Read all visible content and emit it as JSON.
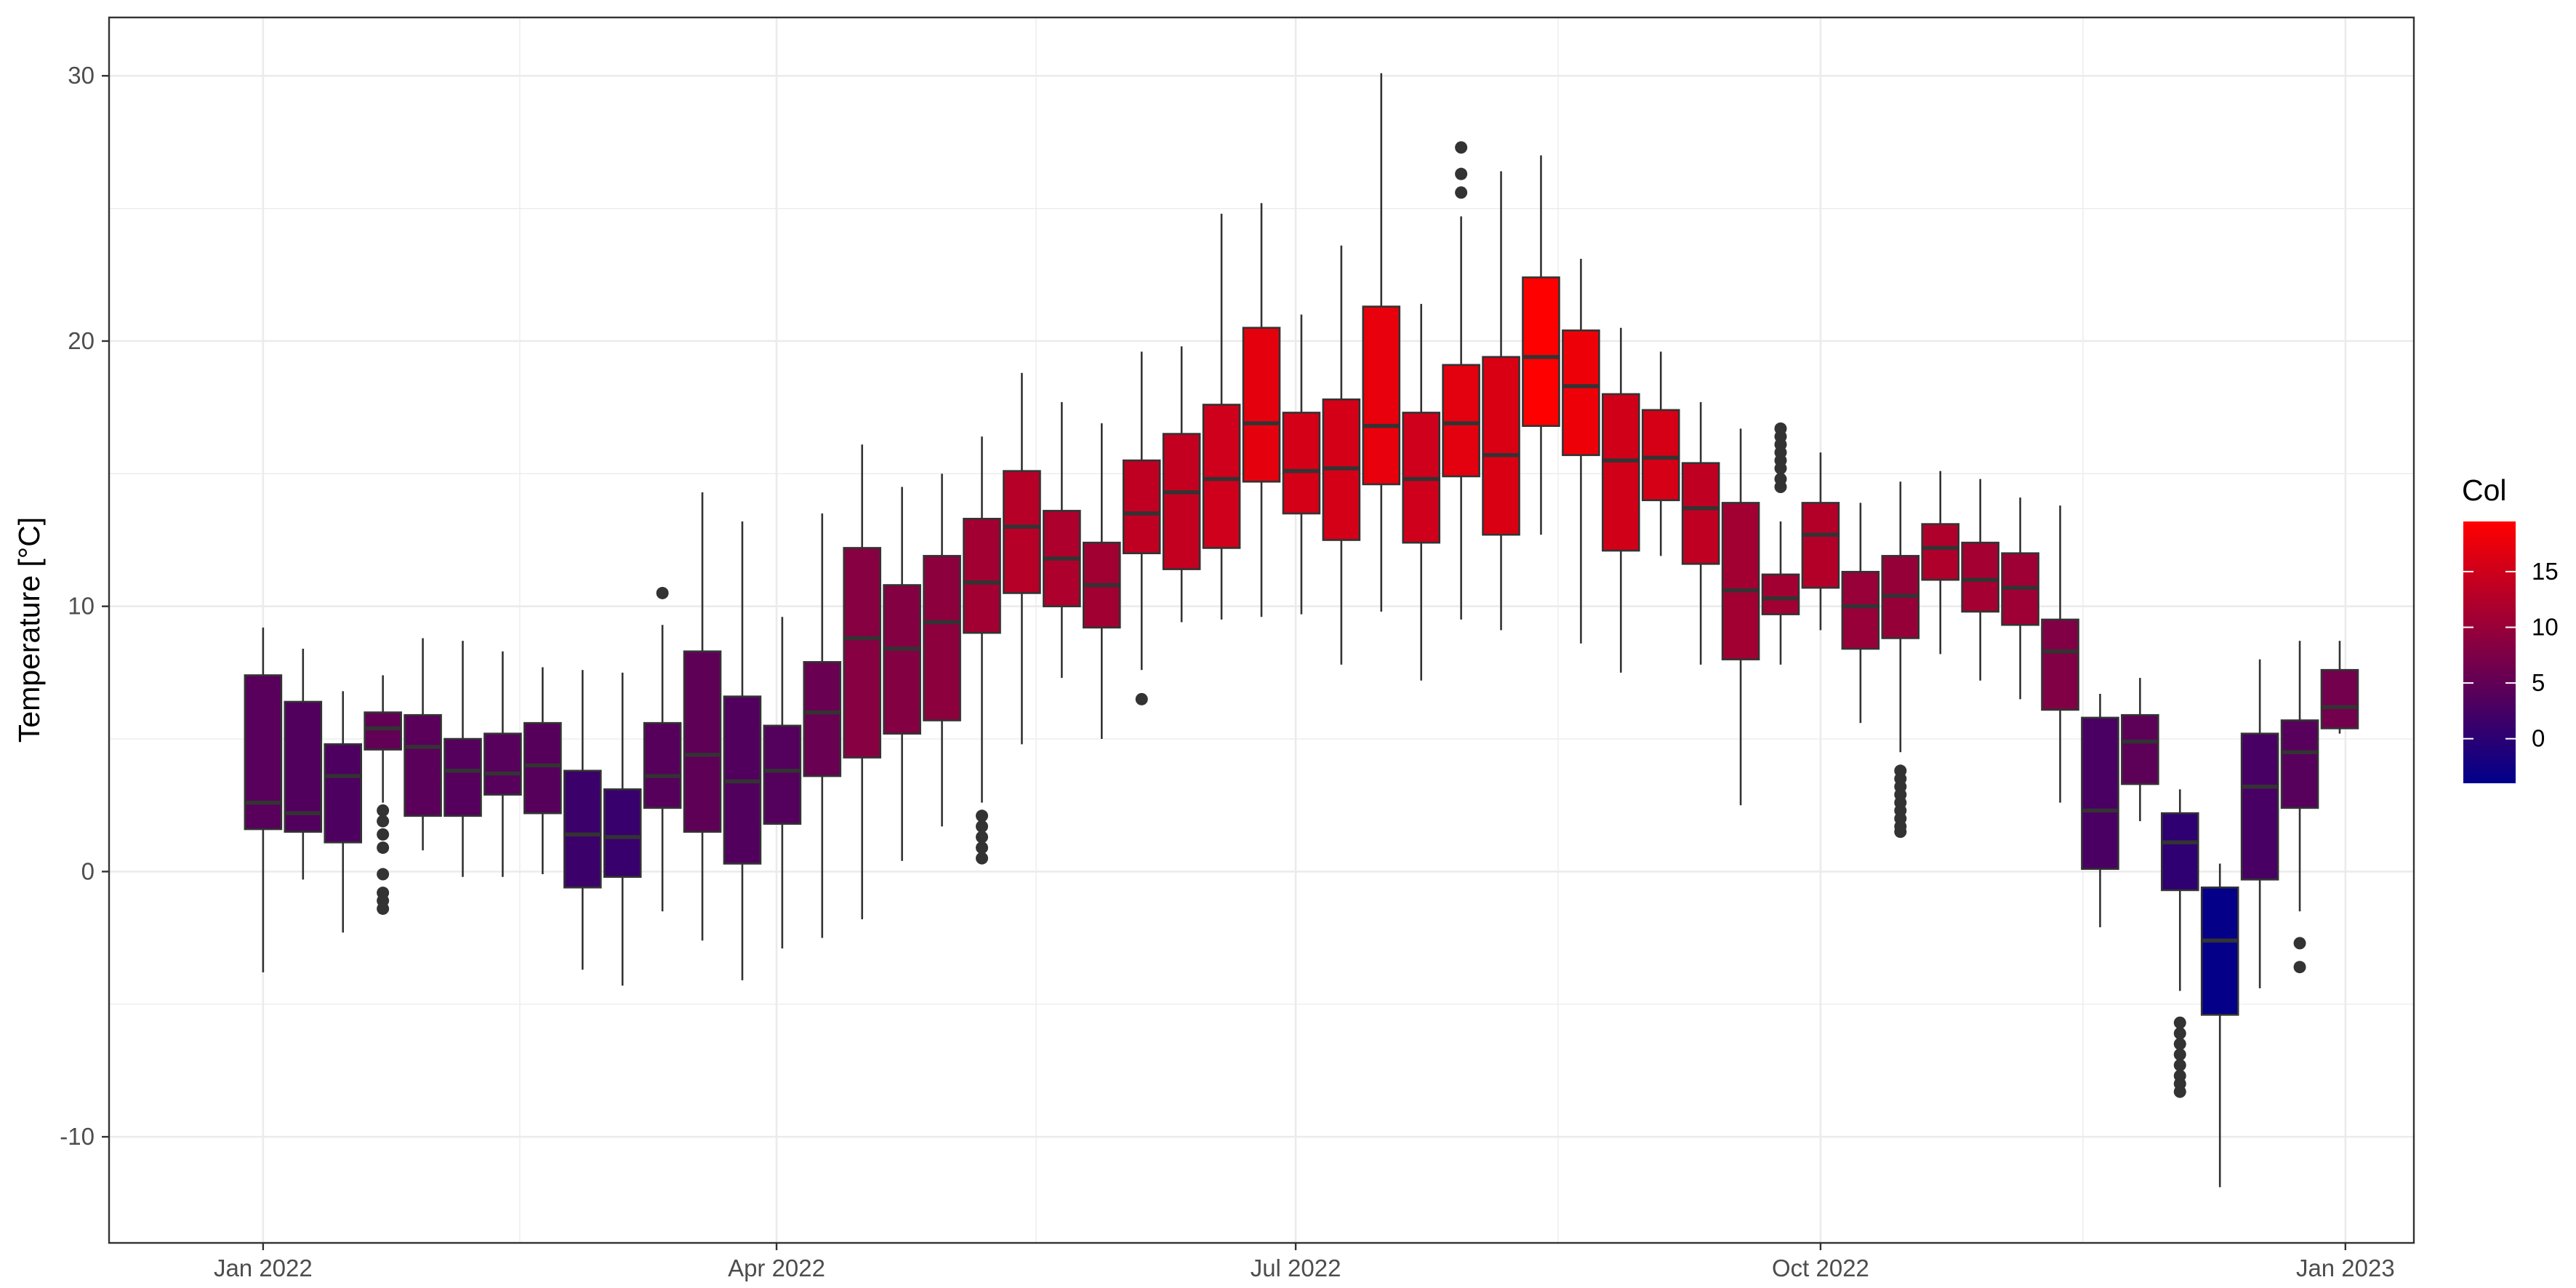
{
  "chart_data": {
    "type": "boxplot",
    "title": "",
    "xlabel": "",
    "ylabel": "Temperature [°C]",
    "xlim": [
      "2021-12-05",
      "2023-01-13"
    ],
    "ylim": [
      -14,
      32.2
    ],
    "x_ticks": [
      {
        "date": "2022-01-01",
        "label": "Jan 2022"
      },
      {
        "date": "2022-04-01",
        "label": "Apr 2022"
      },
      {
        "date": "2022-07-01",
        "label": "Jul 2022"
      },
      {
        "date": "2022-10-01",
        "label": "Oct 2022"
      },
      {
        "date": "2023-01-01",
        "label": "Jan 2023"
      }
    ],
    "y_ticks": [
      -10,
      0,
      10,
      20,
      30
    ],
    "grid": true,
    "legend": {
      "title": "Col",
      "placement": "right",
      "type": "colorbar",
      "range": [
        -4,
        19.5
      ],
      "ticks": [
        0,
        5,
        10,
        15
      ],
      "low_color": "#00008B",
      "high_color": "#FF0000"
    },
    "colors": {
      "panel_border": "#333333",
      "grid": "#ebebeb",
      "box_outline": "#333333",
      "outlier": "#333333"
    },
    "boxes": [
      {
        "x": "2022-01-01",
        "whisker_low": -3.8,
        "q1": 1.6,
        "median": 2.6,
        "q3": 7.4,
        "whisker_high": 9.2,
        "mean": 4.1,
        "outliers": []
      },
      {
        "x": "2022-01-08",
        "whisker_low": -0.3,
        "q1": 1.5,
        "median": 2.2,
        "q3": 6.4,
        "whisker_high": 8.4,
        "mean": 3.6,
        "outliers": []
      },
      {
        "x": "2022-01-15",
        "whisker_low": -2.3,
        "q1": 1.1,
        "median": 3.6,
        "q3": 4.8,
        "whisker_high": 6.8,
        "mean": 3.2,
        "outliers": []
      },
      {
        "x": "2022-01-22",
        "whisker_low": 2.6,
        "q1": 4.6,
        "median": 5.4,
        "q3": 6.0,
        "whisker_high": 7.4,
        "mean": 5.0,
        "outliers": [
          2.3,
          1.9,
          1.4,
          0.9,
          -0.1,
          -0.8,
          -1.1,
          -1.4
        ]
      },
      {
        "x": "2022-01-29",
        "whisker_low": 0.8,
        "q1": 2.1,
        "median": 4.7,
        "q3": 5.9,
        "whisker_high": 8.8,
        "mean": 4.3,
        "outliers": []
      },
      {
        "x": "2022-02-05",
        "whisker_low": -0.2,
        "q1": 2.1,
        "median": 3.8,
        "q3": 5.0,
        "whisker_high": 8.7,
        "mean": 3.8,
        "outliers": []
      },
      {
        "x": "2022-02-12",
        "whisker_low": -0.2,
        "q1": 2.9,
        "median": 3.7,
        "q3": 5.2,
        "whisker_high": 8.3,
        "mean": 4.0,
        "outliers": []
      },
      {
        "x": "2022-02-19",
        "whisker_low": -0.1,
        "q1": 2.2,
        "median": 4.0,
        "q3": 5.6,
        "whisker_high": 7.7,
        "mean": 3.9,
        "outliers": []
      },
      {
        "x": "2022-02-26",
        "whisker_low": -3.7,
        "q1": -0.6,
        "median": 1.4,
        "q3": 3.8,
        "whisker_high": 7.6,
        "mean": 1.5,
        "outliers": []
      },
      {
        "x": "2022-03-05",
        "whisker_low": -4.3,
        "q1": -0.2,
        "median": 1.3,
        "q3": 3.1,
        "whisker_high": 7.5,
        "mean": 1.2,
        "outliers": []
      },
      {
        "x": "2022-03-12",
        "whisker_low": -1.5,
        "q1": 2.4,
        "median": 3.6,
        "q3": 5.6,
        "whisker_high": 9.3,
        "mean": 3.9,
        "outliers": [
          10.5
        ]
      },
      {
        "x": "2022-03-19",
        "whisker_low": -2.6,
        "q1": 1.5,
        "median": 4.4,
        "q3": 8.3,
        "whisker_high": 14.3,
        "mean": 4.8,
        "outliers": []
      },
      {
        "x": "2022-03-26",
        "whisker_low": -4.1,
        "q1": 0.3,
        "median": 3.4,
        "q3": 6.6,
        "whisker_high": 13.2,
        "mean": 3.6,
        "outliers": []
      },
      {
        "x": "2022-04-02",
        "whisker_low": -2.9,
        "q1": 1.8,
        "median": 3.8,
        "q3": 5.5,
        "whisker_high": 9.6,
        "mean": 3.7,
        "outliers": []
      },
      {
        "x": "2022-04-09",
        "whisker_low": -2.5,
        "q1": 3.6,
        "median": 6.0,
        "q3": 7.9,
        "whisker_high": 13.5,
        "mean": 5.7,
        "outliers": []
      },
      {
        "x": "2022-04-16",
        "whisker_low": -1.8,
        "q1": 4.3,
        "median": 8.8,
        "q3": 12.2,
        "whisker_high": 16.1,
        "mean": 8.4,
        "outliers": []
      },
      {
        "x": "2022-04-23",
        "whisker_low": 0.4,
        "q1": 5.2,
        "median": 8.4,
        "q3": 10.8,
        "whisker_high": 14.5,
        "mean": 8.1,
        "outliers": []
      },
      {
        "x": "2022-04-30",
        "whisker_low": 1.7,
        "q1": 5.7,
        "median": 9.4,
        "q3": 11.9,
        "whisker_high": 15.0,
        "mean": 9.0,
        "outliers": []
      },
      {
        "x": "2022-05-07",
        "whisker_low": 2.6,
        "q1": 9.0,
        "median": 10.9,
        "q3": 13.3,
        "whisker_high": 16.4,
        "mean": 10.9,
        "outliers": [
          2.1,
          1.7,
          1.3,
          0.9,
          0.5
        ]
      },
      {
        "x": "2022-05-14",
        "whisker_low": 4.8,
        "q1": 10.5,
        "median": 13.0,
        "q3": 15.1,
        "whisker_high": 18.8,
        "mean": 12.8,
        "outliers": []
      },
      {
        "x": "2022-05-21",
        "whisker_low": 7.3,
        "q1": 10.0,
        "median": 11.8,
        "q3": 13.6,
        "whisker_high": 17.7,
        "mean": 11.9,
        "outliers": []
      },
      {
        "x": "2022-05-28",
        "whisker_low": 5.0,
        "q1": 9.2,
        "median": 10.8,
        "q3": 12.4,
        "whisker_high": 16.9,
        "mean": 10.8,
        "outliers": []
      },
      {
        "x": "2022-06-04",
        "whisker_low": 7.6,
        "q1": 12.0,
        "median": 13.5,
        "q3": 15.5,
        "whisker_high": 19.6,
        "mean": 13.7,
        "outliers": [
          6.5
        ]
      },
      {
        "x": "2022-06-11",
        "whisker_low": 9.4,
        "q1": 11.4,
        "median": 14.3,
        "q3": 16.5,
        "whisker_high": 19.8,
        "mean": 14.1,
        "outliers": []
      },
      {
        "x": "2022-06-18",
        "whisker_low": 9.5,
        "q1": 12.2,
        "median": 14.8,
        "q3": 17.6,
        "whisker_high": 24.8,
        "mean": 15.0,
        "outliers": []
      },
      {
        "x": "2022-06-25",
        "whisker_low": 9.6,
        "q1": 14.7,
        "median": 16.9,
        "q3": 20.5,
        "whisker_high": 25.2,
        "mean": 17.1,
        "outliers": []
      },
      {
        "x": "2022-07-02",
        "whisker_low": 9.7,
        "q1": 13.5,
        "median": 15.1,
        "q3": 17.3,
        "whisker_high": 21.0,
        "mean": 15.5,
        "outliers": []
      },
      {
        "x": "2022-07-09",
        "whisker_low": 7.8,
        "q1": 12.5,
        "median": 15.2,
        "q3": 17.8,
        "whisker_high": 23.6,
        "mean": 15.5,
        "outliers": []
      },
      {
        "x": "2022-07-16",
        "whisker_low": 9.8,
        "q1": 14.6,
        "median": 16.8,
        "q3": 21.3,
        "whisker_high": 30.1,
        "mean": 17.4,
        "outliers": []
      },
      {
        "x": "2022-07-23",
        "whisker_low": 7.2,
        "q1": 12.4,
        "median": 14.8,
        "q3": 17.3,
        "whisker_high": 21.4,
        "mean": 15.0,
        "outliers": []
      },
      {
        "x": "2022-07-30",
        "whisker_low": 9.5,
        "q1": 14.9,
        "median": 16.9,
        "q3": 19.1,
        "whisker_high": 24.7,
        "mean": 16.9,
        "outliers": [
          27.3,
          26.3,
          25.6
        ]
      },
      {
        "x": "2022-08-06",
        "whisker_low": 9.1,
        "q1": 12.7,
        "median": 15.7,
        "q3": 19.4,
        "whisker_high": 26.4,
        "mean": 16.1,
        "outliers": []
      },
      {
        "x": "2022-08-13",
        "whisker_low": 12.7,
        "q1": 16.8,
        "median": 19.4,
        "q3": 22.4,
        "whisker_high": 27.0,
        "mean": 19.5,
        "outliers": []
      },
      {
        "x": "2022-08-20",
        "whisker_low": 8.6,
        "q1": 15.7,
        "median": 18.3,
        "q3": 20.4,
        "whisker_high": 23.1,
        "mean": 17.9,
        "outliers": []
      },
      {
        "x": "2022-08-27",
        "whisker_low": 7.5,
        "q1": 12.1,
        "median": 15.5,
        "q3": 18.0,
        "whisker_high": 20.5,
        "mean": 15.2,
        "outliers": []
      },
      {
        "x": "2022-09-03",
        "whisker_low": 11.9,
        "q1": 14.0,
        "median": 15.6,
        "q3": 17.4,
        "whisker_high": 19.6,
        "mean": 15.7,
        "outliers": []
      },
      {
        "x": "2022-09-10",
        "whisker_low": 7.8,
        "q1": 11.6,
        "median": 13.7,
        "q3": 15.4,
        "whisker_high": 17.7,
        "mean": 13.6,
        "outliers": []
      },
      {
        "x": "2022-09-17",
        "whisker_low": 2.5,
        "q1": 8.0,
        "median": 10.6,
        "q3": 13.9,
        "whisker_high": 16.7,
        "mean": 10.9,
        "outliers": []
      },
      {
        "x": "2022-09-24",
        "whisker_low": 7.8,
        "q1": 9.7,
        "median": 10.3,
        "q3": 11.2,
        "whisker_high": 13.2,
        "mean": 10.9,
        "outliers": [
          16.7,
          16.4,
          16.1,
          15.8,
          15.5,
          15.2,
          14.8,
          14.5
        ]
      },
      {
        "x": "2022-10-01",
        "whisker_low": 9.1,
        "q1": 10.7,
        "median": 12.7,
        "q3": 13.9,
        "whisker_high": 15.8,
        "mean": 12.5,
        "outliers": []
      },
      {
        "x": "2022-10-08",
        "whisker_low": 5.6,
        "q1": 8.4,
        "median": 10.0,
        "q3": 11.3,
        "whisker_high": 13.9,
        "mean": 9.9,
        "outliers": []
      },
      {
        "x": "2022-10-15",
        "whisker_low": 4.5,
        "q1": 8.8,
        "median": 10.4,
        "q3": 11.9,
        "whisker_high": 14.7,
        "mean": 9.8,
        "outliers": [
          3.8,
          3.5,
          3.2,
          2.9,
          2.6,
          2.3,
          2.0,
          1.7,
          1.5
        ]
      },
      {
        "x": "2022-10-22",
        "whisker_low": 8.2,
        "q1": 11.0,
        "median": 12.2,
        "q3": 13.1,
        "whisker_high": 15.1,
        "mean": 12.1,
        "outliers": []
      },
      {
        "x": "2022-10-29",
        "whisker_low": 7.2,
        "q1": 9.8,
        "median": 11.0,
        "q3": 12.4,
        "whisker_high": 14.8,
        "mean": 11.1,
        "outliers": []
      },
      {
        "x": "2022-11-05",
        "whisker_low": 6.5,
        "q1": 9.3,
        "median": 10.7,
        "q3": 12.0,
        "whisker_high": 14.1,
        "mean": 10.6,
        "outliers": []
      },
      {
        "x": "2022-11-12",
        "whisker_low": 2.6,
        "q1": 6.1,
        "median": 8.3,
        "q3": 9.5,
        "whisker_high": 13.8,
        "mean": 7.9,
        "outliers": []
      },
      {
        "x": "2022-11-19",
        "whisker_low": -2.1,
        "q1": 0.1,
        "median": 2.3,
        "q3": 5.8,
        "whisker_high": 6.7,
        "mean": 2.8,
        "outliers": []
      },
      {
        "x": "2022-11-26",
        "whisker_low": 1.9,
        "q1": 3.3,
        "median": 4.9,
        "q3": 5.9,
        "whisker_high": 7.3,
        "mean": 4.6,
        "outliers": []
      },
      {
        "x": "2022-12-03",
        "whisker_low": -4.5,
        "q1": -0.7,
        "median": 1.1,
        "q3": 2.2,
        "whisker_high": 3.1,
        "mean": 0.2,
        "outliers": [
          -5.7,
          -6.1,
          -6.5,
          -6.9,
          -7.3,
          -7.7,
          -8.0,
          -8.3
        ]
      },
      {
        "x": "2022-12-10",
        "whisker_low": -11.9,
        "q1": -5.4,
        "median": -2.6,
        "q3": -0.6,
        "whisker_high": 0.3,
        "mean": -3.5,
        "outliers": []
      },
      {
        "x": "2022-12-17",
        "whisker_low": -4.4,
        "q1": -0.3,
        "median": 3.2,
        "q3": 5.2,
        "whisker_high": 8.0,
        "mean": 2.6,
        "outliers": []
      },
      {
        "x": "2022-12-24",
        "whisker_low": -1.5,
        "q1": 2.4,
        "median": 4.5,
        "q3": 5.7,
        "whisker_high": 8.7,
        "mean": 4.0,
        "outliers": [
          -2.7,
          -3.6
        ]
      },
      {
        "x": "2022-12-31",
        "whisker_low": 5.2,
        "q1": 5.4,
        "median": 6.2,
        "q3": 7.6,
        "whisker_high": 8.7,
        "mean": 6.5,
        "outliers": []
      }
    ]
  }
}
